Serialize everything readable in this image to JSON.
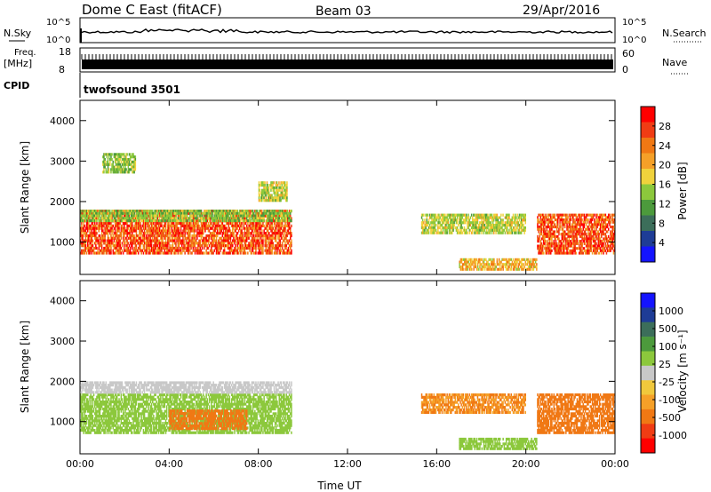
{
  "header": {
    "title": "Dome C East (fitACF)",
    "beam": "Beam 03",
    "date": "29/Apr/2016"
  },
  "top_panels": {
    "nsky_label": "N.Sky",
    "nsky_ticks": [
      "10^5",
      "10^0"
    ],
    "nsearch_label": "N.Search",
    "nsearch_ticks": [
      "10^5",
      "10^0"
    ],
    "freq_label_1": "Freq.",
    "freq_label_2": "[MHz]",
    "freq_ticks": [
      "18",
      "8"
    ],
    "nave_label": "Nave",
    "nave_ticks": [
      "60",
      "0"
    ],
    "cpid_label": "CPID",
    "cpid_value": "twofsound 3501"
  },
  "colors": {
    "power": [
      "#1414ff",
      "#1e3c96",
      "#3c6e5a",
      "#4c9a3c",
      "#8cc83c",
      "#f0d23c",
      "#f5a028",
      "#f07814",
      "#f03c14",
      "#ff0000"
    ],
    "velocity": [
      "#ff0000",
      "#f03c14",
      "#f07814",
      "#f5a028",
      "#f0c83c",
      "#c8c8c8",
      "#8cc83c",
      "#4c9a3c",
      "#3c6e5a",
      "#1e3c96",
      "#1414ff"
    ]
  },
  "chart_data": [
    {
      "type": "heatmap",
      "name": "power",
      "ylabel": "Slant Range [km]",
      "yticks": [
        "1000",
        "2000",
        "3000",
        "4000"
      ],
      "yrange": [
        200,
        4500
      ],
      "colorbar_label": "Power [dB]",
      "colorbar_ticks": [
        "4",
        "8",
        "12",
        "16",
        "20",
        "24",
        "28"
      ],
      "colorbar_range": [
        0,
        32
      ],
      "regions": [
        {
          "t": [
            0.0,
            9.5
          ],
          "r": [
            700,
            1800
          ],
          "value": 26
        },
        {
          "t": [
            0.0,
            9.5
          ],
          "r": [
            1500,
            1800
          ],
          "value": 14
        },
        {
          "t": [
            8.0,
            9.3
          ],
          "r": [
            2000,
            2500
          ],
          "value": 16
        },
        {
          "t": [
            1.0,
            2.5
          ],
          "r": [
            2700,
            3200
          ],
          "value": 14
        },
        {
          "t": [
            15.3,
            20.0
          ],
          "r": [
            1200,
            1700
          ],
          "value": 16
        },
        {
          "t": [
            17.0,
            20.5
          ],
          "r": [
            300,
            600
          ],
          "value": 20
        },
        {
          "t": [
            20.5,
            24.0
          ],
          "r": [
            700,
            1700
          ],
          "value": 26
        }
      ]
    },
    {
      "type": "heatmap",
      "name": "velocity",
      "ylabel": "Slant Range [km]",
      "xlabel": "Time UT",
      "yticks": [
        "1000",
        "2000",
        "3000",
        "4000"
      ],
      "yrange": [
        200,
        4500
      ],
      "xticks": [
        "00:00",
        "04:00",
        "08:00",
        "12:00",
        "16:00",
        "20:00",
        "00:00"
      ],
      "xrange": [
        0,
        24
      ],
      "colorbar_label": "Velocity [m s⁻¹]",
      "colorbar_ticks": [
        "1000",
        "500",
        "100",
        "25",
        "-25",
        "-100",
        "-500",
        "-1000"
      ],
      "regions": [
        {
          "t": [
            0.0,
            9.5
          ],
          "r": [
            700,
            1700
          ],
          "value": 50
        },
        {
          "t": [
            0.0,
            9.5
          ],
          "r": [
            1700,
            2000
          ],
          "value": 0
        },
        {
          "t": [
            4.0,
            7.5
          ],
          "r": [
            800,
            1300
          ],
          "value": -200
        },
        {
          "t": [
            15.3,
            20.0
          ],
          "r": [
            1200,
            1700
          ],
          "value": -100
        },
        {
          "t": [
            17.0,
            20.5
          ],
          "r": [
            300,
            600
          ],
          "value": 50
        },
        {
          "t": [
            20.5,
            24.0
          ],
          "r": [
            700,
            1700
          ],
          "value": -150
        }
      ]
    }
  ]
}
